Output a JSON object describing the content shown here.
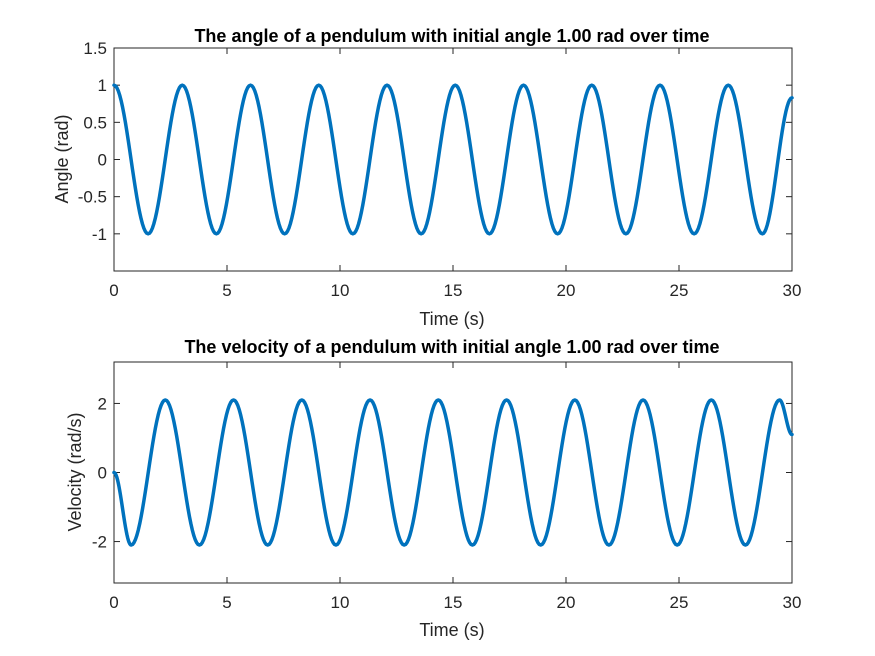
{
  "colors": {
    "line": "#0072BD",
    "axis": "#262626",
    "background": "#ffffff"
  },
  "chart_data": [
    {
      "type": "line",
      "title": "The angle of a pendulum with initial angle 1.00 rad over time",
      "xlabel": "Time (s)",
      "ylabel": "Angle (rad)",
      "xlim": [
        0,
        30
      ],
      "ylim": [
        -1.5,
        1.5
      ],
      "xticks": [
        0,
        5,
        10,
        15,
        20,
        25,
        30
      ],
      "xtick_labels": [
        "0",
        "5",
        "10",
        "15",
        "20",
        "25",
        "30"
      ],
      "yticks": [
        -1,
        -0.5,
        0,
        0.5,
        1,
        1.5
      ],
      "ytick_labels": [
        "-1",
        "-0.5",
        "0",
        "0.5",
        "1",
        "1.5"
      ],
      "grid": false,
      "series": [
        {
          "x": [
            0,
            1.51,
            3.02,
            4.53,
            6.04,
            7.55,
            9.06,
            10.57,
            12.08,
            13.59,
            15.1,
            16.61,
            18.12,
            19.63,
            21.14,
            22.65,
            24.16,
            25.67,
            27.18,
            28.69,
            30
          ],
          "y": [
            1,
            -1,
            1,
            -1,
            1,
            -1,
            1,
            -1,
            1,
            -1,
            1,
            -1,
            1,
            -1,
            1,
            -1,
            1,
            -1,
            1,
            -1,
            0.83
          ]
        }
      ]
    },
    {
      "type": "line",
      "title": "The velocity of a pendulum with initial angle 1.00 rad over time",
      "xlabel": "Time (s)",
      "ylabel": "Velocity (rad/s)",
      "xlim": [
        0,
        30
      ],
      "ylim": [
        -3.2,
        3.2
      ],
      "xticks": [
        0,
        5,
        10,
        15,
        20,
        25,
        30
      ],
      "xtick_labels": [
        "0",
        "5",
        "10",
        "15",
        "20",
        "25",
        "30"
      ],
      "yticks": [
        -2,
        0,
        2
      ],
      "ytick_labels": [
        "-2",
        "0",
        "2"
      ],
      "grid": false,
      "series": [
        {
          "x": [
            0,
            0.76,
            2.27,
            3.78,
            5.29,
            6.8,
            8.31,
            9.82,
            11.33,
            12.84,
            14.35,
            15.86,
            17.37,
            18.88,
            20.39,
            21.9,
            23.41,
            24.92,
            26.43,
            27.94,
            29.45,
            30
          ],
          "y": [
            0,
            -2.1,
            2.1,
            -2.1,
            2.1,
            -2.1,
            2.1,
            -2.1,
            2.1,
            -2.1,
            2.1,
            -2.1,
            2.1,
            -2.1,
            2.1,
            -2.1,
            2.1,
            -2.1,
            2.1,
            -2.1,
            2.1,
            1.1
          ]
        }
      ]
    }
  ]
}
